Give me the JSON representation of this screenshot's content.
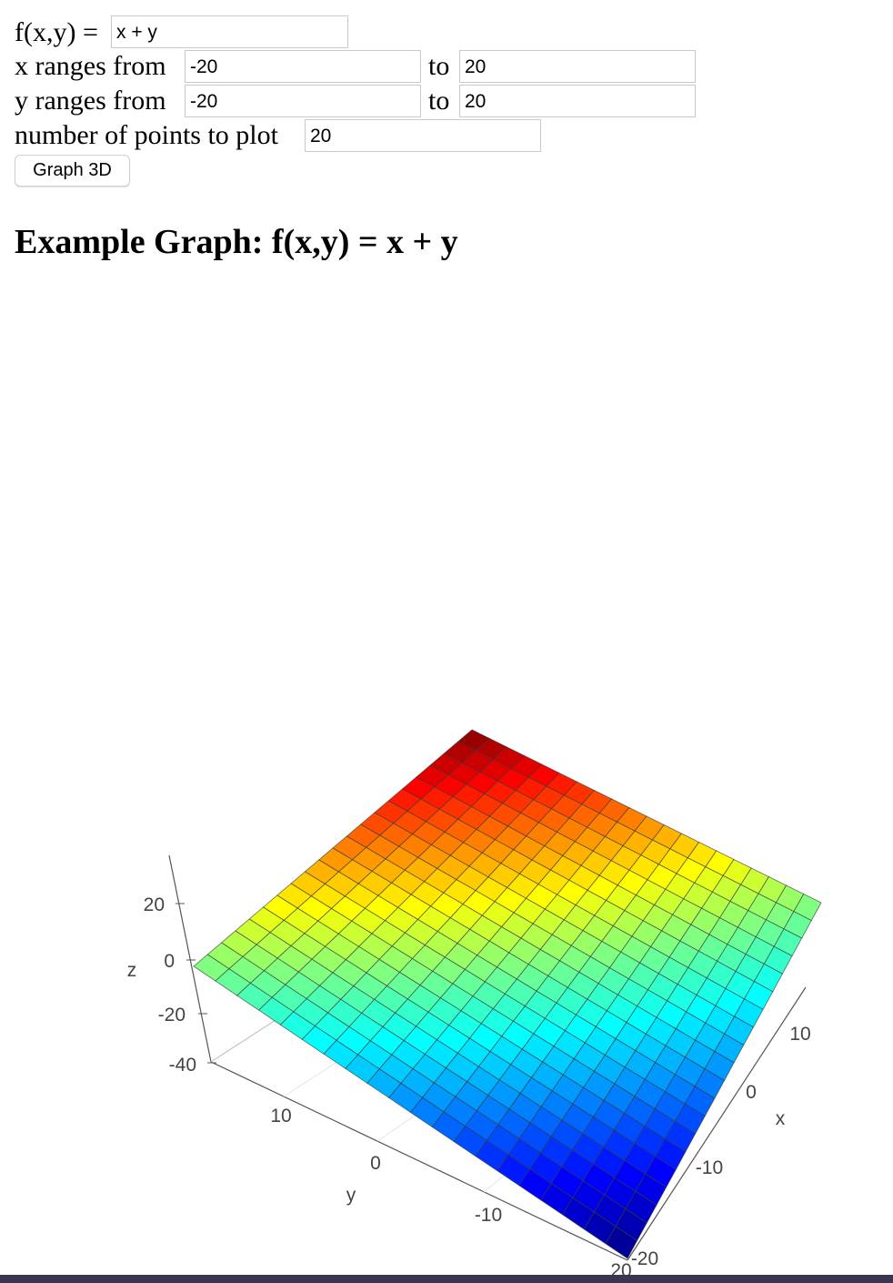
{
  "form": {
    "f_label": "f(x,y) =",
    "f_value": "x + y",
    "x_label": "x ranges from",
    "x_from": "-20",
    "x_to_label": "to",
    "x_to": "20",
    "y_label": "y ranges from",
    "y_from": "-20",
    "y_to_label": "to",
    "y_to": "20",
    "points_label": "number of points to plot",
    "points_value": "20",
    "button_label": "Graph 3D"
  },
  "heading": "Example Graph: f(x,y) = x + y",
  "chart_data": {
    "type": "surface3d",
    "function": "x + y",
    "x_range": [
      -20,
      20
    ],
    "y_range": [
      -20,
      20
    ],
    "z_range": [
      -40,
      40
    ],
    "points": 20,
    "colorscale": "jet",
    "axes": {
      "x": {
        "label": "x",
        "ticks": [
          "10",
          "0",
          "-10",
          "-20"
        ]
      },
      "y": {
        "label": "y",
        "ticks": [
          "10",
          "0",
          "-10",
          "20"
        ]
      },
      "z": {
        "label": "z",
        "ticks": [
          "20",
          "0",
          "-20",
          "-40"
        ]
      }
    }
  }
}
